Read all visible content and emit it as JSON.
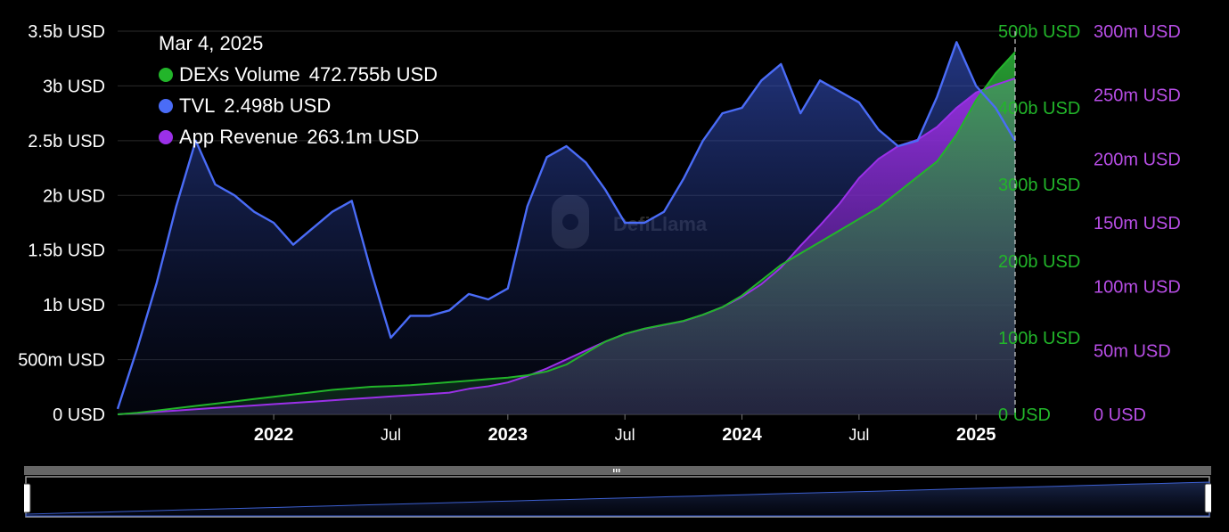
{
  "chart_data": {
    "type": "line",
    "x": [
      "2021-05",
      "2021-06",
      "2021-07",
      "2021-08",
      "2021-09",
      "2021-10",
      "2021-11",
      "2021-12",
      "2022-01",
      "2022-02",
      "2022-03",
      "2022-04",
      "2022-05",
      "2022-06",
      "2022-07",
      "2022-08",
      "2022-09",
      "2022-10",
      "2022-11",
      "2022-12",
      "2023-01",
      "2023-02",
      "2023-03",
      "2023-04",
      "2023-05",
      "2023-06",
      "2023-07",
      "2023-08",
      "2023-09",
      "2023-10",
      "2023-11",
      "2023-12",
      "2024-01",
      "2024-02",
      "2024-03",
      "2024-04",
      "2024-05",
      "2024-06",
      "2024-07",
      "2024-08",
      "2024-09",
      "2024-10",
      "2024-11",
      "2024-12",
      "2025-01",
      "2025-02",
      "2025-03"
    ],
    "x_tick_labels": [
      "2022",
      "Jul",
      "2023",
      "Jul",
      "2024",
      "Jul",
      "2025"
    ],
    "x_tick_dates": [
      "2022-01",
      "2022-07",
      "2023-01",
      "2023-07",
      "2024-01",
      "2024-07",
      "2025-01"
    ],
    "bold_ticks": [
      "2022",
      "2023",
      "2024",
      "2025"
    ],
    "series": [
      {
        "name": "TVL",
        "axis": "left",
        "color": "#4a6cf7",
        "values": [
          0.05,
          0.6,
          1.2,
          1.9,
          2.5,
          2.1,
          2.0,
          1.85,
          1.75,
          1.55,
          1.7,
          1.85,
          1.95,
          1.3,
          0.7,
          0.9,
          0.9,
          0.95,
          1.1,
          1.05,
          1.15,
          1.9,
          2.35,
          2.45,
          2.3,
          2.05,
          1.75,
          1.75,
          1.85,
          2.15,
          2.5,
          2.75,
          2.8,
          3.05,
          3.2,
          2.75,
          3.05,
          2.95,
          2.85,
          2.6,
          2.45,
          2.5,
          2.9,
          3.4,
          3.0,
          2.8,
          2.498
        ]
      },
      {
        "name": "DEXs Volume",
        "axis": "right1",
        "color": "#22b52a",
        "values": [
          0,
          2,
          5,
          8,
          11,
          14,
          17,
          20,
          23,
          26,
          29,
          32,
          34,
          36,
          37,
          38,
          40,
          42,
          44,
          46,
          48,
          51,
          56,
          65,
          80,
          95,
          105,
          112,
          117,
          122,
          130,
          140,
          155,
          175,
          195,
          210,
          225,
          240,
          255,
          270,
          290,
          310,
          330,
          365,
          410,
          445,
          472.755
        ]
      },
      {
        "name": "App Revenue",
        "axis": "right2",
        "color": "#9b30e8",
        "values": [
          0,
          1,
          2,
          3,
          4,
          5,
          6,
          7,
          8,
          9,
          10,
          11,
          12,
          13,
          14,
          15,
          16,
          17,
          20,
          22,
          25,
          30,
          36,
          43,
          50,
          57,
          63,
          67,
          70,
          73,
          78,
          84,
          92,
          102,
          115,
          132,
          148,
          165,
          185,
          200,
          210,
          215,
          225,
          240,
          252,
          258,
          263.1
        ]
      }
    ],
    "axes": {
      "left": {
        "ticks": [
          "0 USD",
          "500m USD",
          "1b USD",
          "1.5b USD",
          "2b USD",
          "2.5b USD",
          "3b USD",
          "3.5b USD"
        ],
        "ylim": [
          0,
          3.5
        ],
        "color": "#ffffff"
      },
      "right1": {
        "ticks": [
          "0 USD",
          "100b USD",
          "200b USD",
          "300b USD",
          "400b USD",
          "500b USD"
        ],
        "ylim": [
          0,
          500
        ],
        "color": "#22b52a"
      },
      "right2": {
        "ticks": [
          "0 USD",
          "50m USD",
          "100m USD",
          "150m USD",
          "200m USD",
          "250m USD",
          "300m USD"
        ],
        "ylim": [
          0,
          300
        ],
        "color": "#b84ee6"
      }
    },
    "grid": true,
    "legend": {
      "date": "Mar 4, 2025",
      "items": [
        {
          "name": "DEXs Volume",
          "value": "472.755b USD",
          "color": "#22b52a"
        },
        {
          "name": "TVL",
          "value": "2.498b USD",
          "color": "#4a6cf7"
        },
        {
          "name": "App Revenue",
          "value": "263.1m USD",
          "color": "#9b30e8"
        }
      ],
      "placement": "top-left"
    }
  },
  "watermark": "DefiLlama"
}
